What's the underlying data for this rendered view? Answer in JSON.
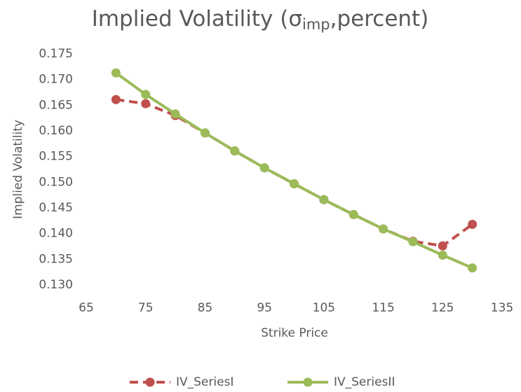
{
  "chart_data": {
    "type": "line",
    "title": {
      "text": "Implied Volatility (σ",
      "subscript": "imp",
      "tail": ",percent)"
    },
    "x_label": "Strike Price",
    "y_label": "Implied Volatility",
    "x": [
      70,
      75,
      80,
      85,
      90,
      95,
      100,
      105,
      110,
      115,
      120,
      125,
      130
    ],
    "series": [
      {
        "name": "IV_SeriesI",
        "color": "#c0504d",
        "dashed": true,
        "values": [
          0.1661,
          0.1653,
          0.163,
          0.1596,
          0.1561,
          0.1528,
          0.1497,
          0.1466,
          0.1437,
          0.1409,
          0.1385,
          0.1376,
          0.1418
        ]
      },
      {
        "name": "IV_SeriesII",
        "color": "#9bbb59",
        "dashed": false,
        "values": [
          0.1713,
          0.1671,
          0.1633,
          0.1596,
          0.1561,
          0.1528,
          0.1497,
          0.1466,
          0.1437,
          0.1409,
          0.1384,
          0.1358,
          0.1333
        ]
      }
    ],
    "xlim": [
      65,
      135
    ],
    "xticks": [
      65,
      75,
      85,
      95,
      105,
      115,
      125,
      135
    ],
    "ylim": [
      0.13,
      0.175
    ],
    "yticks": [
      {
        "value": 0.13,
        "label": "0.130"
      },
      0.135,
      {
        "value": 0.14,
        "label": "0.140"
      },
      0.145,
      {
        "value": 0.15,
        "label": "0.150"
      },
      0.155,
      {
        "value": 0.16,
        "label": "0.160"
      },
      0.165,
      {
        "value": 0.17,
        "label": "0.170"
      },
      0.175
    ],
    "grid": false,
    "legend": "bottom"
  }
}
